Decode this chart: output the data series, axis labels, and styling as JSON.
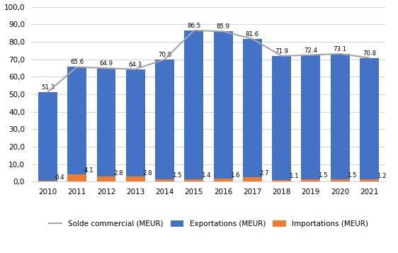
{
  "years": [
    2010,
    2011,
    2012,
    2013,
    2014,
    2015,
    2016,
    2017,
    2018,
    2019,
    2020,
    2021
  ],
  "exportations": [
    51.3,
    65.6,
    64.9,
    64.3,
    70.0,
    86.5,
    85.9,
    81.6,
    71.9,
    72.4,
    73.1,
    70.8
  ],
  "importations": [
    0.4,
    4.1,
    2.8,
    2.8,
    1.5,
    1.4,
    1.6,
    2.7,
    1.1,
    1.5,
    1.5,
    1.2
  ],
  "bar_color_exp": "#4472C4",
  "bar_color_imp": "#ED7D31",
  "line_color": "#A5A5A5",
  "background_color": "#FFFFFF",
  "ylim": [
    0,
    100
  ],
  "yticks": [
    0,
    10,
    20,
    30,
    40,
    50,
    60,
    70,
    80,
    90,
    100
  ],
  "legend_exp": "Exportations (MEUR)",
  "legend_imp": "Importations (MEUR)",
  "legend_solde": "Solde commercial (MEUR)"
}
